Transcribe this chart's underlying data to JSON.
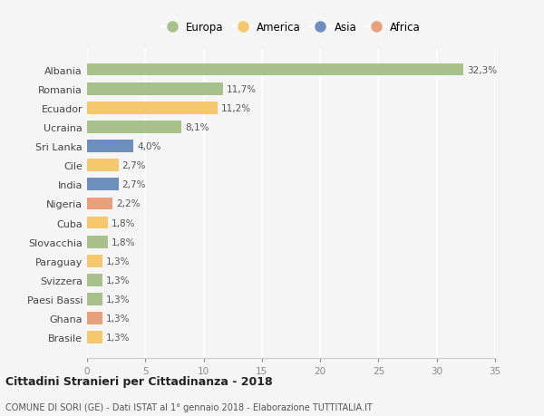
{
  "categories": [
    "Albania",
    "Romania",
    "Ecuador",
    "Ucraina",
    "Sri Lanka",
    "Cile",
    "India",
    "Nigeria",
    "Cuba",
    "Slovacchia",
    "Paraguay",
    "Svizzera",
    "Paesi Bassi",
    "Ghana",
    "Brasile"
  ],
  "values": [
    32.3,
    11.7,
    11.2,
    8.1,
    4.0,
    2.7,
    2.7,
    2.2,
    1.8,
    1.8,
    1.3,
    1.3,
    1.3,
    1.3,
    1.3
  ],
  "labels": [
    "32,3%",
    "11,7%",
    "11,2%",
    "8,1%",
    "4,0%",
    "2,7%",
    "2,7%",
    "2,2%",
    "1,8%",
    "1,8%",
    "1,3%",
    "1,3%",
    "1,3%",
    "1,3%",
    "1,3%"
  ],
  "continents": [
    "Europa",
    "Europa",
    "America",
    "Europa",
    "Asia",
    "America",
    "Asia",
    "Africa",
    "America",
    "Europa",
    "America",
    "Europa",
    "Europa",
    "Africa",
    "America"
  ],
  "colors": {
    "Europa": "#a8c08a",
    "America": "#f5c86e",
    "Asia": "#6e8fbe",
    "Africa": "#e8a07a"
  },
  "title": "Cittadini Stranieri per Cittadinanza - 2018",
  "subtitle": "COMUNE DI SORI (GE) - Dati ISTAT al 1° gennaio 2018 - Elaborazione TUTTITALIA.IT",
  "xlim": [
    0,
    35
  ],
  "xticks": [
    0,
    5,
    10,
    15,
    20,
    25,
    30,
    35
  ],
  "background_color": "#f5f5f5",
  "grid_color": "#ffffff",
  "bar_height": 0.65
}
